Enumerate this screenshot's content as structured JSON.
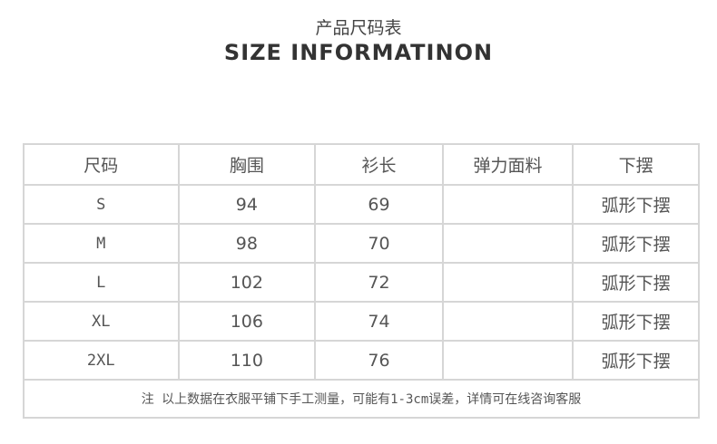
{
  "title_cn": "产品尺码表",
  "title_en": "SIZE INFORMATINON",
  "headers": [
    "尺码",
    "胸围",
    "衫长",
    "弹力面料",
    "下摆"
  ],
  "rows": [
    [
      "S",
      "94",
      "69",
      "",
      "弧形下摆"
    ],
    [
      "M",
      "98",
      "70",
      "",
      "弧形下摆"
    ],
    [
      "L",
      "102",
      "72",
      "",
      "弧形下摆"
    ],
    [
      "XL",
      "106",
      "74",
      "",
      "弧形下摆"
    ],
    [
      "2XL",
      "110",
      "76",
      "",
      "弧形下摆"
    ]
  ],
  "note": "注 以上数据在衣服平铺下手工测量，可能有1-3cm误差，详情可在线咨询客服"
}
